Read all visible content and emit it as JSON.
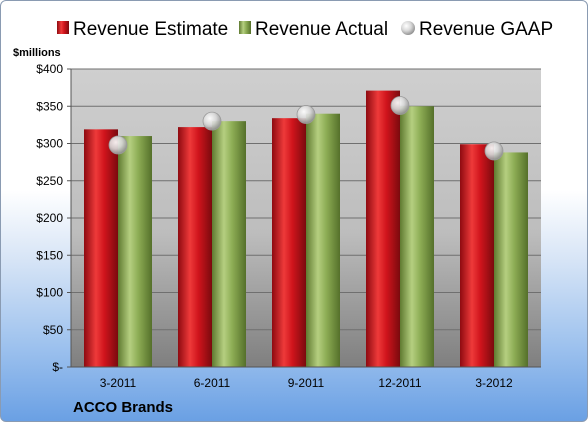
{
  "chart_data": {
    "type": "bar",
    "company": "ACCO Brands",
    "ylabel": "$millions",
    "categories": [
      "3-2011",
      "6-2011",
      "9-2011",
      "12-2011",
      "3-2012"
    ],
    "series": [
      {
        "name": "Revenue Estimate",
        "kind": "bar",
        "color": "#d0141c",
        "values": [
          319,
          322,
          334,
          371,
          299
        ]
      },
      {
        "name": "Revenue Actual",
        "kind": "bar",
        "color": "#8cac54",
        "values": [
          310,
          330,
          340,
          350,
          288
        ]
      },
      {
        "name": "Revenue GAAP",
        "kind": "marker",
        "color": "#bfbfbf",
        "values": [
          298,
          330,
          339,
          351,
          290
        ]
      }
    ],
    "ylim": [
      0,
      400
    ],
    "yticks": [
      0,
      50,
      100,
      150,
      200,
      250,
      300,
      350,
      400
    ],
    "ytick_labels": [
      "$-",
      "$50",
      "$100",
      "$150",
      "$200",
      "$250",
      "$300",
      "$350",
      "$400"
    ],
    "grid": true,
    "legend_position": "top"
  }
}
